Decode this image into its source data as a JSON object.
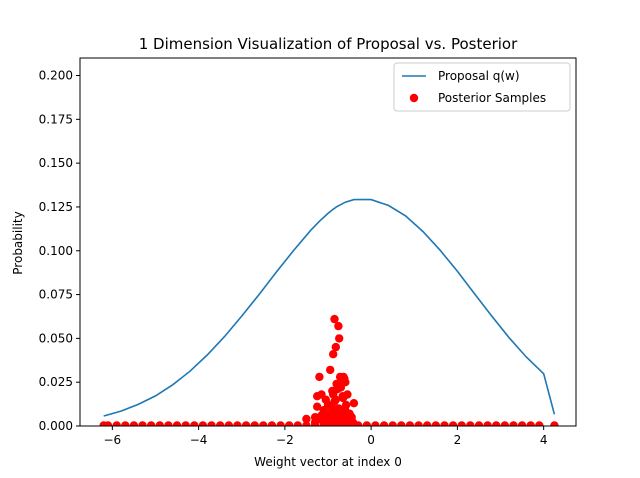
{
  "chart_data": {
    "type": "line",
    "title": "1 Dimension Visualization of Proposal vs. Posterior",
    "xlabel": "Weight vector at index 0",
    "ylabel": "Probability",
    "xlim": [
      -6.75,
      4.75
    ],
    "ylim": [
      0.0,
      0.21
    ],
    "xticks": [
      -6,
      -4,
      -2,
      0,
      2,
      4
    ],
    "xtick_labels": [
      "−6",
      "−4",
      "−2",
      "0",
      "2",
      "4"
    ],
    "yticks": [
      0.0,
      0.025,
      0.05,
      0.075,
      0.1,
      0.125,
      0.15,
      0.175,
      0.2
    ],
    "ytick_labels": [
      "0.000",
      "0.025",
      "0.050",
      "0.075",
      "0.100",
      "0.125",
      "0.150",
      "0.175",
      "0.200"
    ],
    "grid": false,
    "legend_placement": "top-right",
    "series": [
      {
        "name": "Proposal q(w)",
        "kind": "line",
        "color": "#1f77b4",
        "x": [
          -6.2,
          -5.8,
          -5.4,
          -5.0,
          -4.6,
          -4.2,
          -3.8,
          -3.4,
          -3.0,
          -2.6,
          -2.2,
          -1.8,
          -1.4,
          -1.2,
          -1.0,
          -0.9,
          -0.8,
          -0.6,
          -0.4,
          0.0,
          0.4,
          0.8,
          1.2,
          1.6,
          2.0,
          2.4,
          2.8,
          3.2,
          3.6,
          4.0,
          4.25
        ],
        "y": [
          0.0057,
          0.0085,
          0.0123,
          0.0172,
          0.0235,
          0.0313,
          0.0405,
          0.051,
          0.0627,
          0.075,
          0.0877,
          0.1001,
          0.1117,
          0.1168,
          0.1213,
          0.1233,
          0.1251,
          0.1277,
          0.1292,
          0.1292,
          0.1259,
          0.1199,
          0.111,
          0.1003,
          0.0883,
          0.0754,
          0.0626,
          0.0504,
          0.0393,
          0.0298,
          0.0067
        ]
      },
      {
        "name": "Posterior Samples",
        "kind": "scatter",
        "color": "#ff0000",
        "x": [
          -6.2,
          -6.1,
          -5.9,
          -5.7,
          -5.5,
          -5.3,
          -5.1,
          -4.9,
          -4.7,
          -4.5,
          -4.3,
          -4.1,
          -3.9,
          -3.7,
          -3.5,
          -3.3,
          -3.1,
          -2.9,
          -2.7,
          -2.5,
          -2.3,
          -2.1,
          -1.9,
          -1.7,
          -1.5,
          -1.3,
          -1.1,
          -0.9,
          -0.7,
          -0.5,
          -0.3,
          -0.1,
          0.1,
          0.3,
          0.5,
          0.7,
          0.9,
          1.1,
          1.3,
          1.5,
          1.7,
          1.9,
          2.1,
          2.3,
          2.5,
          2.7,
          2.9,
          3.1,
          3.3,
          3.5,
          3.7,
          3.9,
          4.25,
          -1.5,
          -1.3,
          -1.25,
          -1.2,
          -1.15,
          -1.1,
          -1.05,
          -1.0,
          -0.95,
          -0.92,
          -0.9,
          -0.88,
          -0.85,
          -0.82,
          -0.8,
          -0.78,
          -0.76,
          -0.74,
          -0.72,
          -0.7,
          -0.68,
          -0.66,
          -0.64,
          -0.62,
          -0.6,
          -0.58,
          -0.55,
          -0.5,
          -0.45,
          -0.4,
          -1.3,
          -1.2,
          -1.1,
          -1.0,
          -0.95,
          -0.9,
          -0.85,
          -0.8,
          -0.75,
          -0.7,
          -0.65,
          -0.6,
          -0.55,
          -0.5,
          -0.45,
          -1.25,
          -1.15,
          -1.05,
          -0.98,
          -0.88,
          -0.82,
          -0.78,
          -0.72,
          -0.68,
          -0.62,
          -0.58,
          -0.52,
          -0.42,
          -1.0,
          -0.9,
          -0.86,
          -0.84,
          -0.8,
          -0.78,
          -0.74,
          -0.7,
          -0.66,
          -0.62,
          -0.6,
          -1.1,
          -1.05
        ],
        "y": [
          0.0003,
          0.0003,
          0.0003,
          0.0003,
          0.0003,
          0.0003,
          0.0003,
          0.0003,
          0.0003,
          0.0003,
          0.0003,
          0.0003,
          0.0003,
          0.0003,
          0.0003,
          0.0003,
          0.0003,
          0.0003,
          0.0003,
          0.0003,
          0.0003,
          0.0003,
          0.0003,
          0.0003,
          0.0003,
          0.0003,
          0.0003,
          0.0003,
          0.0003,
          0.0003,
          0.0003,
          0.0003,
          0.0003,
          0.0003,
          0.0003,
          0.0003,
          0.0003,
          0.0003,
          0.0003,
          0.0003,
          0.0003,
          0.0003,
          0.0003,
          0.0003,
          0.0003,
          0.0003,
          0.0003,
          0.0003,
          0.0003,
          0.0003,
          0.0003,
          0.0003,
          0.0003,
          0.004,
          0.005,
          0.017,
          0.028,
          0.018,
          0.002,
          0.015,
          0.007,
          0.032,
          0.011,
          0.02,
          0.041,
          0.061,
          0.045,
          0.024,
          0.021,
          0.057,
          0.05,
          0.028,
          0.022,
          0.025,
          0.017,
          0.028,
          0.027,
          0.025,
          0.012,
          0.018,
          0.006,
          0.005,
          0.013,
          0.002,
          0.004,
          0.009,
          0.012,
          0.003,
          0.008,
          0.014,
          0.006,
          0.01,
          0.004,
          0.016,
          0.009,
          0.003,
          0.007,
          0.002,
          0.011,
          0.006,
          0.003,
          0.005,
          0.018,
          0.015,
          0.004,
          0.008,
          0.002,
          0.006,
          0.004,
          0.003,
          0.002,
          0.001,
          0.002,
          0.009,
          0.001,
          0.003,
          0.002,
          0.007,
          0.004,
          0.002,
          0.001,
          0.005,
          0.003,
          0.001
        ]
      }
    ]
  }
}
